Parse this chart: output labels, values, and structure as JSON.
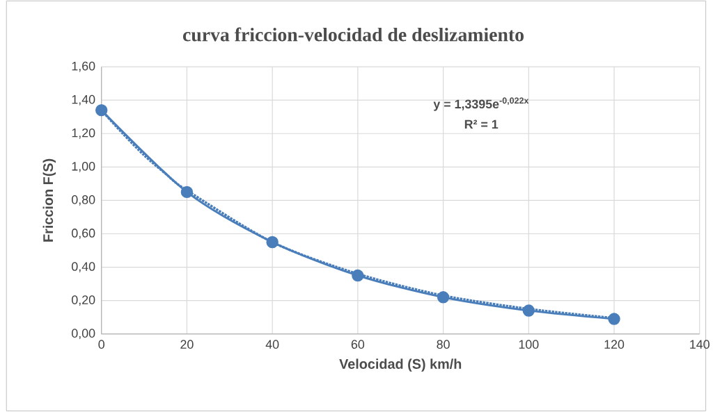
{
  "chart_data": {
    "type": "line",
    "title": "curva friccion-velocidad de deslizamiento",
    "xlabel": "Velocidad (S) km/h",
    "ylabel": "Friccion F(S)",
    "x": [
      0,
      20,
      40,
      60,
      80,
      100,
      120
    ],
    "series": [
      {
        "color": "#4a7ebb",
        "values": [
          1.34,
          0.85,
          0.55,
          0.35,
          0.22,
          0.14,
          0.09
        ]
      },
      {
        "type": "line",
        "color": "#4a7ebb",
        "line_style": "dotted",
        "marker": "none",
        "x": [
          0,
          5,
          10,
          15,
          20,
          40,
          60,
          80,
          100,
          120
        ],
        "values": [
          1.34,
          1.2,
          1.07,
          0.96,
          0.86,
          0.55,
          0.36,
          0.23,
          0.15,
          0.095
        ]
      }
    ],
    "xlim": [
      0,
      140
    ],
    "xticks": [
      0,
      20,
      40,
      60,
      80,
      100,
      120,
      140
    ],
    "ylim": [
      0,
      1.6
    ],
    "yticks": [
      {
        "value": 0,
        "label": "0,00"
      },
      {
        "value": 0.2,
        "label": "0,20"
      },
      {
        "value": 0.4,
        "label": "0,40"
      },
      {
        "value": 0.6,
        "label": "0,60"
      },
      {
        "value": 0.8,
        "label": "0,80"
      },
      {
        "value": 1.0,
        "label": "1,00"
      },
      {
        "value": 1.2,
        "label": "1,20"
      },
      {
        "value": 1.4,
        "label": "1,40"
      },
      {
        "value": 1.6,
        "label": "1,60"
      }
    ],
    "annotations": [
      "y = 1,3395e$^{-0,022x}$",
      "R² = 1"
    ],
    "grid": true,
    "marker": "circle",
    "line_style": "solid"
  }
}
